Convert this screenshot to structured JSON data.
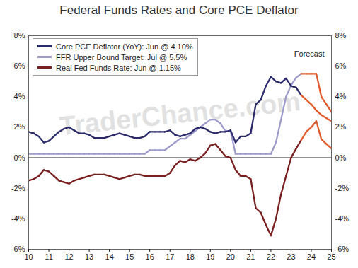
{
  "chart_data": {
    "type": "line",
    "title": "Federal Funds Rates and Core PCE Deflator",
    "annotations": [
      "Forecast",
      "TraderChance.com"
    ],
    "legend": "top-left",
    "grid": false,
    "x": [
      2010,
      2010.25,
      2010.5,
      2010.75,
      2011,
      2011.25,
      2011.5,
      2011.75,
      2012,
      2012.25,
      2012.5,
      2012.75,
      2013,
      2013.25,
      2013.5,
      2013.75,
      2014,
      2014.25,
      2014.5,
      2014.75,
      2015,
      2015.25,
      2015.5,
      2015.75,
      2016,
      2016.25,
      2016.5,
      2016.75,
      2017,
      2017.25,
      2017.5,
      2017.75,
      2018,
      2018.25,
      2018.5,
      2018.75,
      2019,
      2019.25,
      2019.5,
      2019.75,
      2020,
      2020.25,
      2020.5,
      2020.75,
      2021,
      2021.25,
      2021.5,
      2021.75,
      2022,
      2022.25,
      2022.5,
      2022.75,
      2023,
      2023.25,
      2023.5,
      2023.75,
      2024,
      2024.25,
      2024.5,
      2024.75,
      2025
    ],
    "xlim": [
      2010,
      2025
    ],
    "xticks": [
      {
        "value": 2010,
        "label": "10"
      },
      {
        "value": 2011,
        "label": "11"
      },
      {
        "value": 2012,
        "label": "12"
      },
      {
        "value": 2013,
        "label": "13"
      },
      {
        "value": 2014,
        "label": "14"
      },
      {
        "value": 2015,
        "label": "15"
      },
      {
        "value": 2016,
        "label": "16"
      },
      {
        "value": 2017,
        "label": "17"
      },
      {
        "value": 2018,
        "label": "18"
      },
      {
        "value": 2019,
        "label": "19"
      },
      {
        "value": 2020,
        "label": "20"
      },
      {
        "value": 2021,
        "label": "21"
      },
      {
        "value": 2022,
        "label": "22"
      },
      {
        "value": 2023,
        "label": "23"
      },
      {
        "value": 2024,
        "label": "24"
      },
      {
        "value": 2025,
        "label": "25"
      }
    ],
    "ylim": [
      -6,
      8
    ],
    "yticks": [
      {
        "value": -6,
        "label": "-6%"
      },
      {
        "value": -4,
        "label": "-4%"
      },
      {
        "value": -2,
        "label": "-2%"
      },
      {
        "value": 0,
        "label": "0%"
      },
      {
        "value": 2,
        "label": "2%"
      },
      {
        "value": 4,
        "label": "4%"
      },
      {
        "value": 6,
        "label": "6%"
      },
      {
        "value": 8,
        "label": "8%"
      }
    ],
    "y2lim": [
      -6,
      8
    ],
    "y2ticks": [
      {
        "value": -6,
        "label": "-6%"
      },
      {
        "value": -4,
        "label": "-4%"
      },
      {
        "value": -2,
        "label": "-2%"
      },
      {
        "value": 0,
        "label": "0%"
      },
      {
        "value": 2,
        "label": "2%"
      },
      {
        "value": 4,
        "label": "4%"
      },
      {
        "value": 6,
        "label": "6%"
      },
      {
        "value": 8,
        "label": "8%"
      }
    ],
    "series": [
      {
        "name": "Core PCE Deflator (YoY): Jun @ 4.10%",
        "color": "#2b2a6b",
        "values": [
          1.7,
          1.6,
          1.4,
          1.0,
          1.1,
          1.4,
          1.7,
          1.9,
          2.0,
          1.8,
          1.6,
          1.6,
          1.5,
          1.3,
          1.3,
          1.3,
          1.4,
          1.5,
          1.6,
          1.5,
          1.4,
          1.3,
          1.3,
          1.4,
          1.7,
          1.7,
          1.7,
          1.7,
          1.8,
          1.5,
          1.4,
          1.5,
          1.6,
          1.9,
          2.0,
          1.9,
          1.7,
          1.6,
          1.7,
          1.7,
          1.8,
          1.0,
          1.4,
          1.4,
          1.6,
          3.5,
          3.8,
          4.7,
          5.3,
          5.0,
          4.9,
          5.2,
          4.7,
          4.6,
          4.1,
          3.8,
          3.5,
          3.1,
          2.8,
          2.6,
          2.4
        ],
        "colors": [
          "#2b2a6b",
          "#2b2a6b",
          "#2b2a6b",
          "#2b2a6b",
          "#2b2a6b",
          "#2b2a6b",
          "#2b2a6b",
          "#2b2a6b",
          "#2b2a6b",
          "#2b2a6b",
          "#2b2a6b",
          "#2b2a6b",
          "#2b2a6b",
          "#2b2a6b",
          "#2b2a6b",
          "#2b2a6b",
          "#2b2a6b",
          "#2b2a6b",
          "#2b2a6b",
          "#2b2a6b",
          "#2b2a6b",
          "#2b2a6b",
          "#2b2a6b",
          "#2b2a6b",
          "#2b2a6b",
          "#2b2a6b",
          "#2b2a6b",
          "#2b2a6b",
          "#2b2a6b",
          "#2b2a6b",
          "#2b2a6b",
          "#2b2a6b",
          "#2b2a6b",
          "#2b2a6b",
          "#2b2a6b",
          "#2b2a6b",
          "#2b2a6b",
          "#2b2a6b",
          "#2b2a6b",
          "#2b2a6b",
          "#2b2a6b",
          "#2b2a6b",
          "#2b2a6b",
          "#2b2a6b",
          "#2b2a6b",
          "#2b2a6b",
          "#2b2a6b",
          "#2b2a6b",
          "#2b2a6b",
          "#2b2a6b",
          "#2b2a6b",
          "#2b2a6b",
          "#2b2a6b",
          "#2b2a6b",
          "#2b2a6b",
          "#e05a2b",
          "#e05a2b",
          "#e05a2b",
          "#e05a2b",
          "#e05a2b",
          "#e05a2b"
        ]
      },
      {
        "name": "FFR Upper Bound Target: Jul @ 5.5%",
        "color": "#9d9bc9",
        "values": [
          0.25,
          0.25,
          0.25,
          0.25,
          0.25,
          0.25,
          0.25,
          0.25,
          0.25,
          0.25,
          0.25,
          0.25,
          0.25,
          0.25,
          0.25,
          0.25,
          0.25,
          0.25,
          0.25,
          0.25,
          0.25,
          0.25,
          0.25,
          0.25,
          0.5,
          0.5,
          0.5,
          0.5,
          0.75,
          1.0,
          1.25,
          1.25,
          1.5,
          1.75,
          2.0,
          2.25,
          2.5,
          2.5,
          2.25,
          1.75,
          1.75,
          0.25,
          0.25,
          0.25,
          0.25,
          0.25,
          0.25,
          0.25,
          0.25,
          1.0,
          2.5,
          4.0,
          4.75,
          5.25,
          5.5,
          5.5,
          5.5,
          5.5,
          4.0,
          3.5,
          3.0
        ],
        "colors": [
          "#9d9bc9",
          "#9d9bc9",
          "#9d9bc9",
          "#9d9bc9",
          "#9d9bc9",
          "#9d9bc9",
          "#9d9bc9",
          "#9d9bc9",
          "#9d9bc9",
          "#9d9bc9",
          "#9d9bc9",
          "#9d9bc9",
          "#9d9bc9",
          "#9d9bc9",
          "#9d9bc9",
          "#9d9bc9",
          "#9d9bc9",
          "#9d9bc9",
          "#9d9bc9",
          "#9d9bc9",
          "#9d9bc9",
          "#9d9bc9",
          "#9d9bc9",
          "#9d9bc9",
          "#9d9bc9",
          "#9d9bc9",
          "#9d9bc9",
          "#9d9bc9",
          "#9d9bc9",
          "#9d9bc9",
          "#9d9bc9",
          "#9d9bc9",
          "#9d9bc9",
          "#9d9bc9",
          "#9d9bc9",
          "#9d9bc9",
          "#9d9bc9",
          "#9d9bc9",
          "#9d9bc9",
          "#9d9bc9",
          "#9d9bc9",
          "#9d9bc9",
          "#9d9bc9",
          "#9d9bc9",
          "#9d9bc9",
          "#9d9bc9",
          "#9d9bc9",
          "#9d9bc9",
          "#9d9bc9",
          "#9d9bc9",
          "#9d9bc9",
          "#9d9bc9",
          "#9d9bc9",
          "#9d9bc9",
          "#9d9bc9",
          "#e05a2b",
          "#e05a2b",
          "#e05a2b",
          "#e05a2b",
          "#e05a2b",
          "#e05a2b"
        ]
      },
      {
        "name": "Real Fed Funds Rate: Jun @ 1.15%",
        "color": "#7a1f1f",
        "values": [
          -1.5,
          -1.4,
          -1.2,
          -0.8,
          -0.9,
          -1.2,
          -1.5,
          -1.6,
          -1.7,
          -1.5,
          -1.4,
          -1.3,
          -1.2,
          -1.1,
          -1.1,
          -1.1,
          -1.2,
          -1.3,
          -1.4,
          -1.3,
          -1.2,
          -1.1,
          -1.1,
          -1.2,
          -1.2,
          -1.2,
          -1.2,
          -1.2,
          -1.0,
          -0.5,
          -0.2,
          -0.3,
          -0.1,
          -0.2,
          0.0,
          0.3,
          0.8,
          0.9,
          0.5,
          0.1,
          0.0,
          -0.8,
          -1.2,
          -1.2,
          -1.4,
          -3.3,
          -3.6,
          -4.4,
          -5.1,
          -4.0,
          -2.4,
          -1.2,
          0.0,
          0.6,
          1.15,
          1.7,
          2.0,
          2.4,
          1.2,
          0.9,
          0.6
        ],
        "colors": [
          "#7a1f1f",
          "#7a1f1f",
          "#7a1f1f",
          "#7a1f1f",
          "#7a1f1f",
          "#7a1f1f",
          "#7a1f1f",
          "#7a1f1f",
          "#7a1f1f",
          "#7a1f1f",
          "#7a1f1f",
          "#7a1f1f",
          "#7a1f1f",
          "#7a1f1f",
          "#7a1f1f",
          "#7a1f1f",
          "#7a1f1f",
          "#7a1f1f",
          "#7a1f1f",
          "#7a1f1f",
          "#7a1f1f",
          "#7a1f1f",
          "#7a1f1f",
          "#7a1f1f",
          "#7a1f1f",
          "#7a1f1f",
          "#7a1f1f",
          "#7a1f1f",
          "#7a1f1f",
          "#7a1f1f",
          "#7a1f1f",
          "#7a1f1f",
          "#7a1f1f",
          "#7a1f1f",
          "#7a1f1f",
          "#7a1f1f",
          "#7a1f1f",
          "#7a1f1f",
          "#7a1f1f",
          "#7a1f1f",
          "#7a1f1f",
          "#7a1f1f",
          "#7a1f1f",
          "#7a1f1f",
          "#7a1f1f",
          "#7a1f1f",
          "#7a1f1f",
          "#7a1f1f",
          "#7a1f1f",
          "#7a1f1f",
          "#7a1f1f",
          "#7a1f1f",
          "#7a1f1f",
          "#7a1f1f",
          "#7a1f1f",
          "#e05a2b",
          "#e05a2b",
          "#e05a2b",
          "#e05a2b",
          "#e05a2b",
          "#e05a2b"
        ]
      }
    ]
  }
}
